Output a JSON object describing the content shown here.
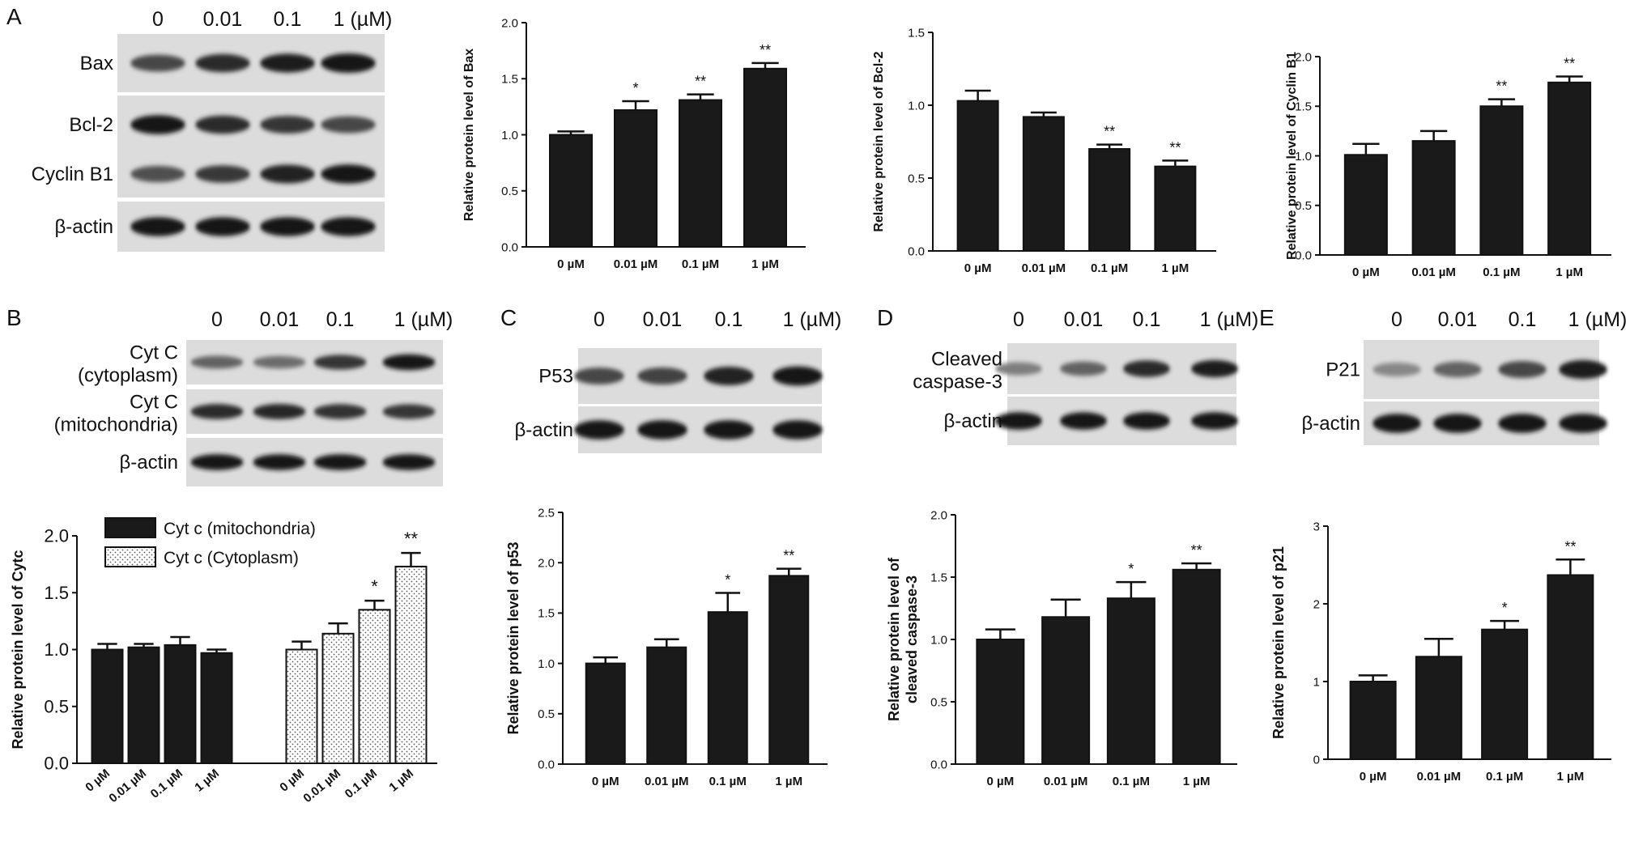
{
  "panels": {
    "A": {
      "letter": "A",
      "blot": {
        "doses": [
          "0",
          "0.01",
          "0.1",
          "1 (µM)"
        ],
        "rows": [
          {
            "label": "Bax",
            "intensity": [
              0.7,
              0.85,
              0.92,
              0.98
            ]
          },
          {
            "label": "Bcl-2",
            "intensity": [
              0.95,
              0.85,
              0.8,
              0.7
            ]
          },
          {
            "label": "Cyclin B1",
            "intensity": [
              0.65,
              0.78,
              0.9,
              0.95
            ]
          },
          {
            "label": "β-actin",
            "intensity": [
              0.95,
              0.95,
              0.95,
              0.95
            ]
          }
        ]
      }
    },
    "B": {
      "letter": "B",
      "blot": {
        "doses": [
          "0",
          "0.01",
          "0.1",
          "1 (µM)"
        ],
        "rows": [
          {
            "label": "Cyt C",
            "label2": "(cytoplasm)",
            "intensity": [
              0.55,
              0.5,
              0.8,
              0.95
            ]
          },
          {
            "label": "Cyt C",
            "label2": "(mitochondria)",
            "intensity": [
              0.85,
              0.88,
              0.82,
              0.8
            ]
          },
          {
            "label": "β-actin",
            "intensity": [
              0.95,
              0.95,
              0.95,
              0.95
            ]
          }
        ]
      }
    },
    "C": {
      "letter": "C",
      "blot": {
        "doses": [
          "0",
          "0.01",
          "0.1",
          "1 (µM)"
        ],
        "rows": [
          {
            "label": "P53",
            "intensity": [
              0.7,
              0.72,
              0.9,
              0.98
            ]
          },
          {
            "label": "β-actin",
            "intensity": [
              0.95,
              0.95,
              0.95,
              0.95
            ]
          }
        ]
      }
    },
    "D": {
      "letter": "D",
      "blot": {
        "doses": [
          "0",
          "0.01",
          "0.1",
          "1 (µM)"
        ],
        "rows": [
          {
            "label": "Cleaved",
            "label2": "caspase-3",
            "intensity": [
              0.4,
              0.55,
              0.85,
              0.92
            ]
          },
          {
            "label": "β-actin",
            "intensity": [
              0.95,
              0.95,
              0.95,
              0.95
            ]
          }
        ]
      }
    },
    "E": {
      "letter": "E",
      "blot": {
        "doses": [
          "0",
          "0.01",
          "0.1",
          "1 (µM)"
        ],
        "rows": [
          {
            "label": "P21",
            "intensity": [
              0.35,
              0.55,
              0.7,
              0.92
            ]
          },
          {
            "label": "β-actin",
            "intensity": [
              0.95,
              0.95,
              0.95,
              0.95
            ]
          }
        ]
      }
    }
  },
  "colors": {
    "bar": "#1a1a1a",
    "axis": "#111111",
    "stipple": "#555555"
  },
  "chart_data": [
    {
      "id": "bax",
      "type": "bar",
      "categories": [
        "0 µM",
        "0.01 µM",
        "0.1 µM",
        "1 µM"
      ],
      "values": [
        1.0,
        1.22,
        1.31,
        1.59
      ],
      "errors": [
        0.03,
        0.08,
        0.05,
        0.05
      ],
      "significance": [
        "",
        "*",
        "**",
        "**"
      ],
      "title": "",
      "xlabel": "",
      "ylabel": "Relative protein level of Bax",
      "ylim": [
        0,
        2.0
      ],
      "yticks": [
        0.0,
        0.5,
        1.0,
        1.5,
        2.0
      ],
      "tick_decimals": 1
    },
    {
      "id": "bcl2",
      "type": "bar",
      "categories": [
        "0 µM",
        "0.01 µM",
        "0.1 µM",
        "1 µM"
      ],
      "values": [
        1.03,
        0.92,
        0.7,
        0.58
      ],
      "errors": [
        0.07,
        0.03,
        0.03,
        0.04
      ],
      "significance": [
        "",
        "",
        "**",
        "**"
      ],
      "title": "",
      "xlabel": "",
      "ylabel": "Relative protein level of Bcl-2",
      "ylim": [
        0,
        1.5
      ],
      "yticks": [
        0.0,
        0.5,
        1.0,
        1.5
      ],
      "tick_decimals": 1
    },
    {
      "id": "cyclinb1",
      "type": "bar",
      "categories": [
        "0 µM",
        "0.01 µM",
        "0.1 µM",
        "1 µM"
      ],
      "values": [
        1.01,
        1.15,
        1.5,
        1.74
      ],
      "errors": [
        0.11,
        0.1,
        0.07,
        0.06
      ],
      "significance": [
        "",
        "",
        "**",
        "**"
      ],
      "title": "",
      "xlabel": "",
      "ylabel": "Relative protein level of Cyclin B1",
      "ylim": [
        0,
        2.0
      ],
      "yticks": [
        0.0,
        0.5,
        1.0,
        1.5,
        2.0
      ],
      "tick_decimals": 1
    },
    {
      "id": "cytc",
      "type": "bar",
      "categories": [
        "0 µM",
        "0.01 µM",
        "0.1 µM",
        "1 µM"
      ],
      "series": [
        {
          "name": "Cyt c (mitochondria)",
          "values": [
            1.0,
            1.02,
            1.04,
            0.97
          ],
          "errors": [
            0.05,
            0.03,
            0.07,
            0.03
          ],
          "significance": [
            "",
            "",
            "",
            ""
          ],
          "fill": "solid"
        },
        {
          "name": "Cyt c (Cytoplasm)",
          "values": [
            1.0,
            1.14,
            1.35,
            1.73
          ],
          "errors": [
            0.07,
            0.09,
            0.08,
            0.12
          ],
          "significance": [
            "",
            "",
            "*",
            "**"
          ],
          "fill": "dotted"
        }
      ],
      "title": "",
      "xlabel": "",
      "ylabel": "Relative protein level of Cytc",
      "ylim": [
        0,
        2.0
      ],
      "yticks": [
        0.0,
        0.5,
        1.0,
        1.5,
        2.0
      ],
      "tick_decimals": 1,
      "legend": "top-left"
    },
    {
      "id": "p53",
      "type": "bar",
      "categories": [
        "0 µM",
        "0.01 µM",
        "0.1 µM",
        "1 µM"
      ],
      "values": [
        1.0,
        1.16,
        1.51,
        1.87
      ],
      "errors": [
        0.06,
        0.08,
        0.19,
        0.07
      ],
      "significance": [
        "",
        "",
        "*",
        "**"
      ],
      "title": "",
      "xlabel": "",
      "ylabel": "Relative protein level of p53",
      "ylim": [
        0,
        2.5
      ],
      "yticks": [
        0.0,
        0.5,
        1.0,
        1.5,
        2.0,
        2.5
      ],
      "tick_decimals": 1
    },
    {
      "id": "casp3",
      "type": "bar",
      "categories": [
        "0 µM",
        "0.01 µM",
        "0.1 µM",
        "1 µM"
      ],
      "values": [
        1.0,
        1.18,
        1.33,
        1.56
      ],
      "errors": [
        0.08,
        0.14,
        0.13,
        0.05
      ],
      "significance": [
        "",
        "",
        "*",
        "**"
      ],
      "title": "",
      "xlabel": "",
      "ylabel": [
        "Relative protein level of",
        "cleaved caspase-3"
      ],
      "ylim": [
        0,
        2.0
      ],
      "yticks": [
        0.0,
        0.5,
        1.0,
        1.5,
        2.0
      ],
      "tick_decimals": 1
    },
    {
      "id": "p21",
      "type": "bar",
      "categories": [
        "0 µM",
        "0.01 µM",
        "0.1 µM",
        "1 µM"
      ],
      "values": [
        1.0,
        1.32,
        1.67,
        2.37
      ],
      "errors": [
        0.08,
        0.23,
        0.11,
        0.2
      ],
      "significance": [
        "",
        "",
        "*",
        "**"
      ],
      "title": "",
      "xlabel": "",
      "ylabel": "Relative protein level of p21",
      "ylim": [
        0,
        3
      ],
      "yticks": [
        0,
        1,
        2,
        3
      ],
      "tick_decimals": 0
    }
  ]
}
